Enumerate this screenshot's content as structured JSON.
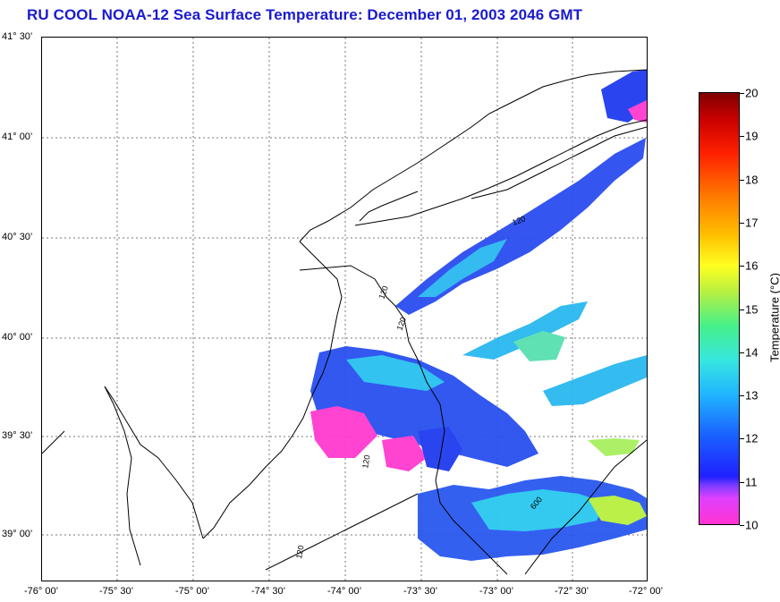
{
  "title": "RU COOL  NOAA-12  Sea Surface Temperature:  December 01, 2003 2046 GMT",
  "lat_labels": [
    "41° 30’",
    "41° 00’",
    "40° 30’",
    "40° 00’",
    "39° 30’",
    "39° 00’"
  ],
  "lon_labels": [
    "-76° 00’",
    "-75° 30’",
    "-75° 00’",
    "-74° 30’",
    "-74° 00’",
    "-73° 30’",
    "-73° 00’",
    "-72° 30’",
    "-72° 00’"
  ],
  "bathymetry_labels": [
    "120",
    "120",
    "120",
    "120",
    "120",
    "600"
  ],
  "colorbar": {
    "label": "Temperature (°C)",
    "ticks": [
      "20",
      "19",
      "18",
      "17",
      "16",
      "15",
      "14",
      "13",
      "12",
      "11",
      "10"
    ],
    "min": 10,
    "max": 20
  },
  "colors": {
    "title": "#1a1ad0",
    "coastline": "#000000",
    "grid": "#777777"
  }
}
